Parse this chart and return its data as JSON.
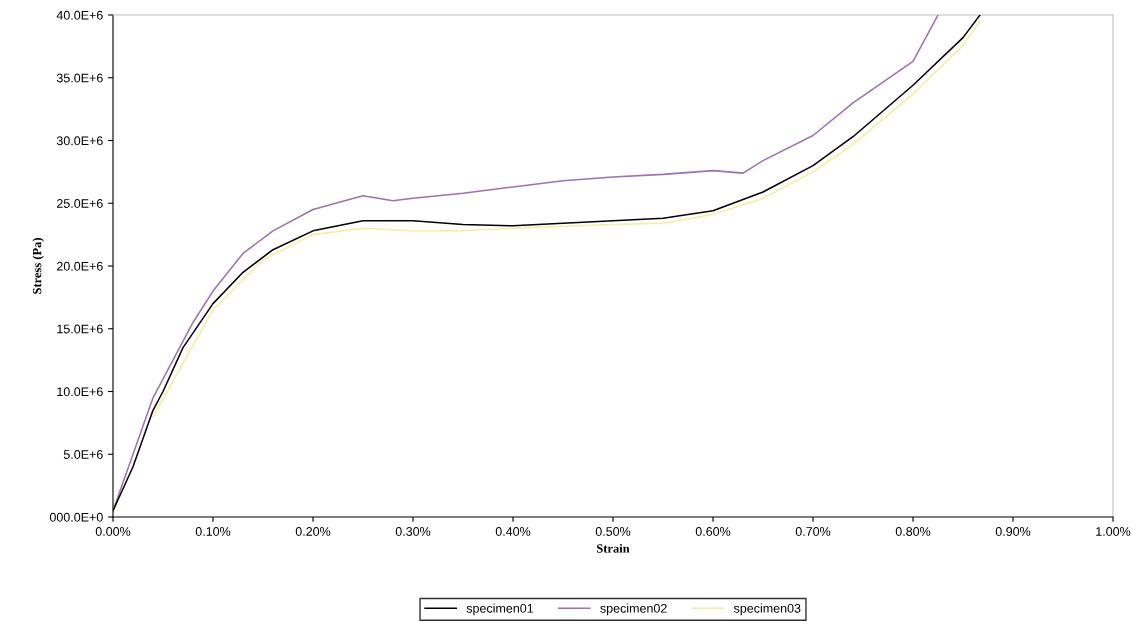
{
  "chart_data": {
    "type": "line",
    "xlabel": "Strain",
    "ylabel": "Stress (Pa)",
    "xlim": [
      0,
      1.0
    ],
    "ylim": [
      0,
      40000000
    ],
    "xticks": [
      {
        "value": 0,
        "label": "0.00%"
      },
      {
        "value": 0.1,
        "label": "0.10%"
      },
      {
        "value": 0.2,
        "label": "0.20%"
      },
      {
        "value": 0.3,
        "label": "0.30%"
      },
      {
        "value": 0.4,
        "label": "0.40%"
      },
      {
        "value": 0.5,
        "label": "0.50%"
      },
      {
        "value": 0.6,
        "label": "0.60%"
      },
      {
        "value": 0.7,
        "label": "0.70%"
      },
      {
        "value": 0.8,
        "label": "0.80%"
      },
      {
        "value": 0.9,
        "label": "0.90%"
      },
      {
        "value": 1.0,
        "label": "1.00%"
      }
    ],
    "yticks": [
      {
        "value": 0,
        "label": "000.0E+0"
      },
      {
        "value": 5000000,
        "label": "5.0E+6"
      },
      {
        "value": 10000000,
        "label": "10.0E+6"
      },
      {
        "value": 15000000,
        "label": "15.0E+6"
      },
      {
        "value": 20000000,
        "label": "20.0E+6"
      },
      {
        "value": 25000000,
        "label": "25.0E+6"
      },
      {
        "value": 30000000,
        "label": "30.0E+6"
      },
      {
        "value": 35000000,
        "label": "35.0E+6"
      },
      {
        "value": 40000000,
        "label": "40.0E+6"
      }
    ],
    "grid": false,
    "legend": "bottom",
    "marker": "none",
    "line_style": "solid",
    "series": [
      {
        "name": "specimen01",
        "color": "#000000",
        "x": [
          0,
          0.02,
          0.04,
          0.05,
          0.07,
          0.1,
          0.13,
          0.16,
          0.2,
          0.25,
          0.3,
          0.35,
          0.4,
          0.45,
          0.5,
          0.55,
          0.6,
          0.63,
          0.65,
          0.7,
          0.74,
          0.8,
          0.85,
          0.867
        ],
        "values": [
          500000,
          4000000,
          8500000,
          10000000,
          13500000,
          17000000,
          19500000,
          21300000,
          22800000,
          23600000,
          23600000,
          23300000,
          23200000,
          23400000,
          23600000,
          23800000,
          24400000,
          25300000,
          25900000,
          28000000,
          30300000,
          34400000,
          38200000,
          40000000
        ]
      },
      {
        "name": "specimen02",
        "color": "#a070b0",
        "x": [
          0,
          0.02,
          0.04,
          0.06,
          0.08,
          0.1,
          0.13,
          0.16,
          0.2,
          0.25,
          0.28,
          0.3,
          0.35,
          0.4,
          0.45,
          0.5,
          0.55,
          0.6,
          0.63,
          0.65,
          0.7,
          0.74,
          0.8,
          0.825
        ],
        "values": [
          500000,
          5000000,
          9500000,
          12500000,
          15500000,
          18000000,
          21000000,
          22800000,
          24500000,
          25600000,
          25200000,
          25400000,
          25800000,
          26300000,
          26800000,
          27100000,
          27300000,
          27600000,
          27400000,
          28400000,
          30400000,
          33000000,
          36300000,
          40000000
        ]
      },
      {
        "name": "specimen03",
        "color": "#f0f0a0",
        "x": [
          0.04,
          0.1,
          0.15,
          0.2,
          0.25,
          0.3,
          0.35,
          0.4,
          0.5,
          0.55,
          0.6,
          0.65,
          0.7,
          0.74,
          0.8,
          0.85,
          0.867
        ],
        "values": [
          8000000,
          16500000,
          20500000,
          22500000,
          23000000,
          22800000,
          22800000,
          23000000,
          23300000,
          23400000,
          24100000,
          25400000,
          27500000,
          29700000,
          33700000,
          37600000,
          39500000
        ]
      }
    ]
  }
}
